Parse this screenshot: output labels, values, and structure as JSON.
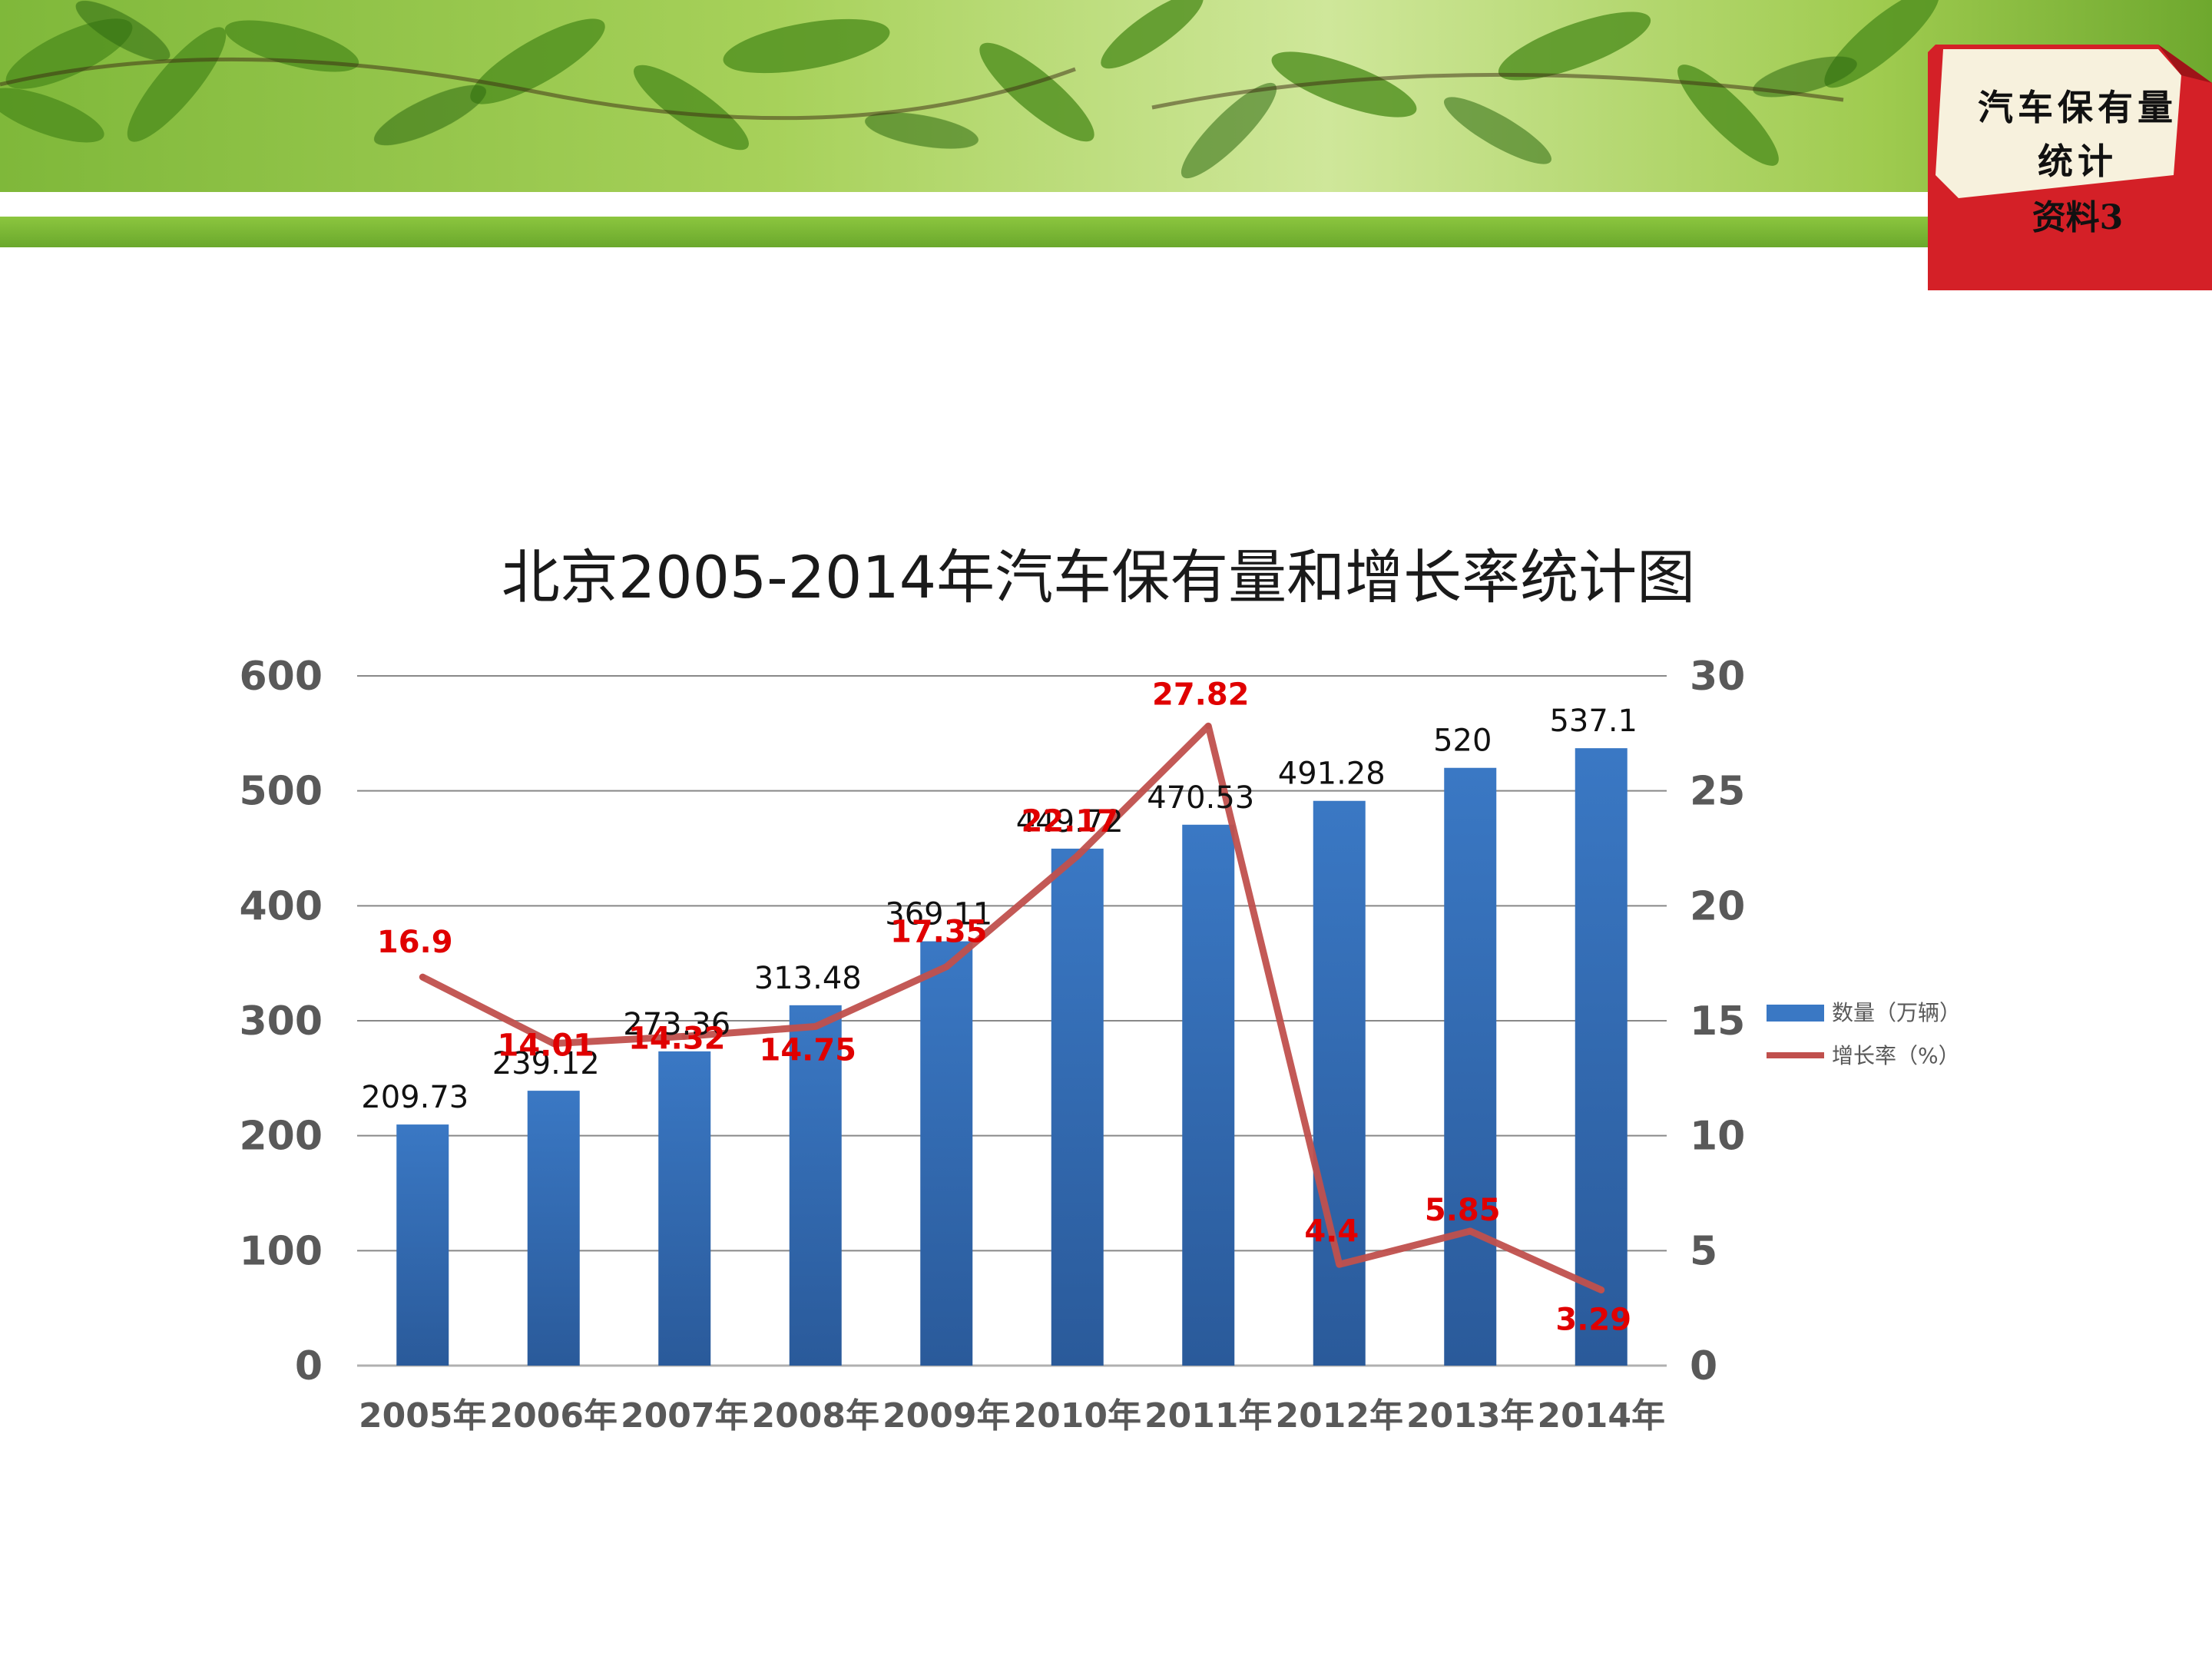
{
  "corner_note": {
    "line1": "汽车保有量",
    "line2": "统计",
    "line3": "资料3"
  },
  "colors": {
    "bar": "#3a78c4",
    "bar_dark": "#2a5a9a",
    "line": "#c0504d",
    "growth_label": "#e00000",
    "grid": "#888888",
    "axis_text": "#595959",
    "note_red": "#d42027"
  },
  "chart_data": {
    "type": "bar",
    "title": "北京2005-2014年汽车保有量和增长率统计图",
    "categories": [
      "2005年",
      "2006年",
      "2007年",
      "2008年",
      "2009年",
      "2010年",
      "2011年",
      "2012年",
      "2013年",
      "2014年"
    ],
    "series": [
      {
        "name": "数量（万辆）",
        "type": "bar",
        "axis": "left",
        "values": [
          209.73,
          239.12,
          273.36,
          313.48,
          369.11,
          449.72,
          470.53,
          491.28,
          520,
          537.1
        ],
        "labels": [
          "209.73",
          "239.12",
          "273.36",
          "313.48",
          "369.11",
          "449.72",
          "470.53",
          "491.28",
          "520",
          "537.1"
        ]
      },
      {
        "name": "增长率（%）",
        "type": "line",
        "axis": "right",
        "values": [
          16.9,
          14.01,
          14.32,
          14.75,
          17.35,
          22.17,
          27.82,
          4.4,
          5.85,
          3.29
        ],
        "labels": [
          "16.9",
          "14.01",
          "14.32",
          "14.75",
          "17.35",
          "22.17",
          "27.82",
          "4.4",
          "5.85",
          "3.29"
        ]
      }
    ],
    "y_left": {
      "min": 0,
      "max": 600,
      "ticks": [
        "0",
        "100",
        "200",
        "300",
        "400",
        "500",
        "600"
      ]
    },
    "y_right": {
      "min": 0,
      "max": 30,
      "ticks": [
        "0",
        "5",
        "10",
        "15",
        "20",
        "25",
        "30"
      ]
    },
    "grid": true,
    "legend_position": "right"
  }
}
